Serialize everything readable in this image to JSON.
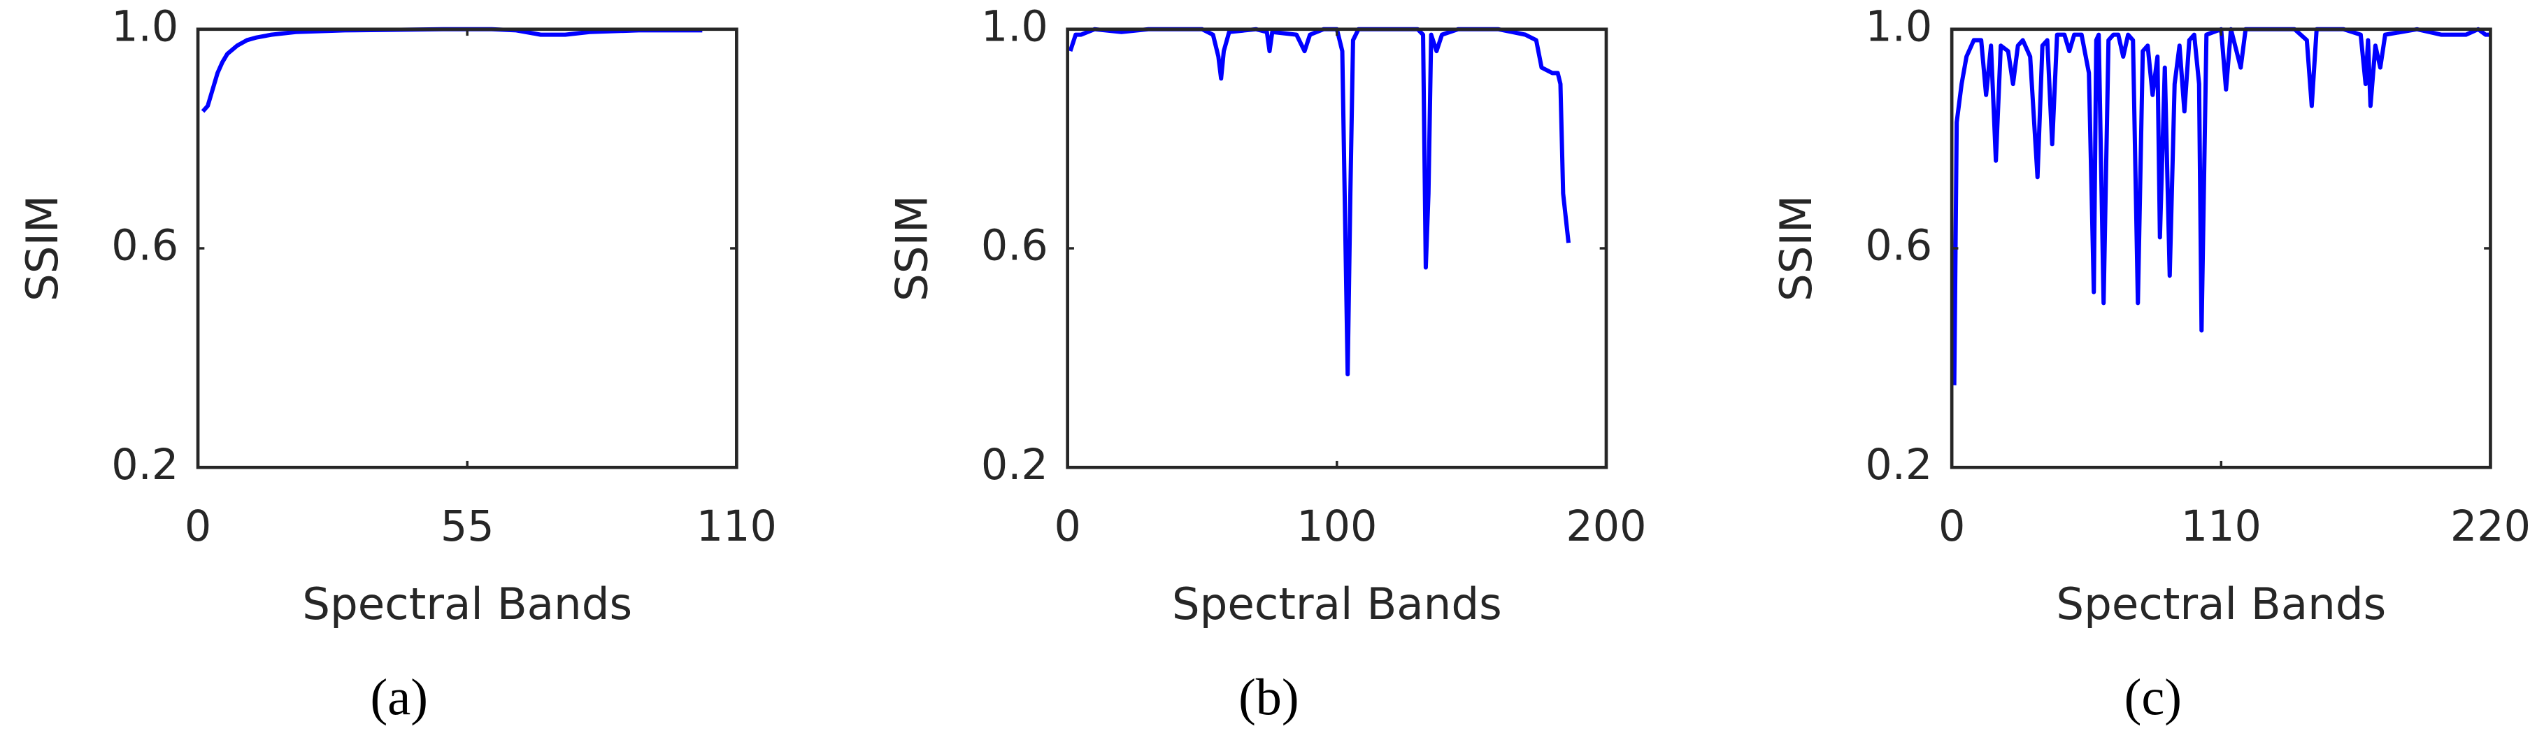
{
  "chart_data": [
    {
      "type": "line",
      "label": "(a)",
      "x_label": "Spectral Bands",
      "y_label": "SSIM",
      "x": [
        1,
        2,
        3,
        4,
        5,
        6,
        8,
        10,
        12,
        15,
        20,
        30,
        40,
        50,
        60,
        65,
        70,
        75,
        80,
        90,
        103
      ],
      "series": [
        {
          "color": "#0000ff",
          "values": [
            0.85,
            0.86,
            0.89,
            0.92,
            0.94,
            0.955,
            0.97,
            0.98,
            0.985,
            0.99,
            0.995,
            0.998,
            0.999,
            1,
            1,
            0.998,
            0.99,
            0.99,
            0.995,
            0.998,
            0.998
          ]
        }
      ],
      "xlim": [
        0,
        110
      ],
      "ylim": [
        0.2,
        1
      ],
      "xticks": [
        0,
        55,
        110
      ],
      "yticks": [
        0.2,
        0.6,
        {
          "value": 1,
          "label": "1.0"
        }
      ]
    },
    {
      "type": "line",
      "label": "(b)",
      "x_label": "Spectral Bands",
      "y_label": "SSIM",
      "x": [
        1,
        3,
        5,
        10,
        20,
        30,
        40,
        50,
        54,
        56,
        57,
        58,
        60,
        70,
        74,
        75,
        76,
        85,
        87,
        88,
        90,
        95,
        100,
        102,
        104,
        105,
        106,
        108,
        120,
        130,
        132,
        133,
        134,
        135,
        137,
        139,
        145,
        160,
        170,
        174,
        176,
        180,
        182,
        183,
        184,
        186
      ],
      "series": [
        {
          "color": "#0000ff",
          "values": [
            0.96,
            0.99,
            0.99,
            1,
            0.995,
            1,
            1,
            1,
            0.99,
            0.95,
            0.91,
            0.96,
            0.995,
            1,
            0.995,
            0.96,
            0.995,
            0.99,
            0.97,
            0.96,
            0.99,
            1,
            1,
            0.96,
            0.37,
            0.7,
            0.98,
            1,
            1,
            1,
            0.99,
            0.565,
            0.7,
            0.99,
            0.96,
            0.99,
            1,
            1,
            0.99,
            0.98,
            0.93,
            0.92,
            0.92,
            0.9,
            0.7,
            0.61
          ]
        }
      ],
      "xlim": [
        0,
        200
      ],
      "ylim": [
        0.2,
        1
      ],
      "xticks": [
        0,
        100,
        200
      ],
      "yticks": [
        0.2,
        0.6,
        {
          "value": 1,
          "label": "1.0"
        }
      ]
    },
    {
      "type": "line",
      "label": "(c)",
      "x_label": "Spectral Bands",
      "y_label": "SSIM",
      "x": [
        1,
        2,
        4,
        6,
        9,
        12,
        14,
        16,
        18,
        20,
        23,
        25,
        27,
        29,
        32,
        35,
        37,
        39,
        41,
        43,
        46,
        48,
        50,
        53,
        56,
        58,
        59,
        60,
        62,
        64,
        66,
        68,
        70,
        72,
        74,
        76,
        78,
        80,
        82,
        84,
        85,
        87,
        89,
        91,
        93,
        95,
        97,
        99,
        101,
        102,
        104,
        110,
        112,
        114,
        118,
        120,
        130,
        140,
        145,
        147,
        149,
        160,
        167,
        169,
        170,
        171,
        173,
        175,
        177,
        190,
        200,
        210,
        215,
        218,
        220
      ],
      "series": [
        {
          "color": "#0000ff",
          "values": [
            0.35,
            0.83,
            0.9,
            0.95,
            0.98,
            0.98,
            0.88,
            0.97,
            0.76,
            0.97,
            0.96,
            0.9,
            0.97,
            0.98,
            0.95,
            0.73,
            0.97,
            0.98,
            0.79,
            0.99,
            0.99,
            0.96,
            0.99,
            0.99,
            0.92,
            0.52,
            0.98,
            0.99,
            0.5,
            0.98,
            0.99,
            0.99,
            0.95,
            0.99,
            0.98,
            0.5,
            0.96,
            0.97,
            0.88,
            0.95,
            0.62,
            0.93,
            0.55,
            0.9,
            0.97,
            0.85,
            0.98,
            0.99,
            0.9,
            0.45,
            0.99,
            1,
            0.89,
            1,
            0.93,
            1,
            1,
            1,
            0.98,
            0.86,
            1,
            1,
            0.99,
            0.9,
            0.98,
            0.86,
            0.97,
            0.93,
            0.99,
            1,
            0.99,
            0.99,
            1,
            0.99,
            0.99
          ]
        }
      ],
      "xlim": [
        0,
        220
      ],
      "ylim": [
        0.2,
        1
      ],
      "xticks": [
        0,
        110,
        220
      ],
      "yticks": [
        0.2,
        0.6,
        {
          "value": 1,
          "label": "1.0"
        }
      ]
    }
  ]
}
